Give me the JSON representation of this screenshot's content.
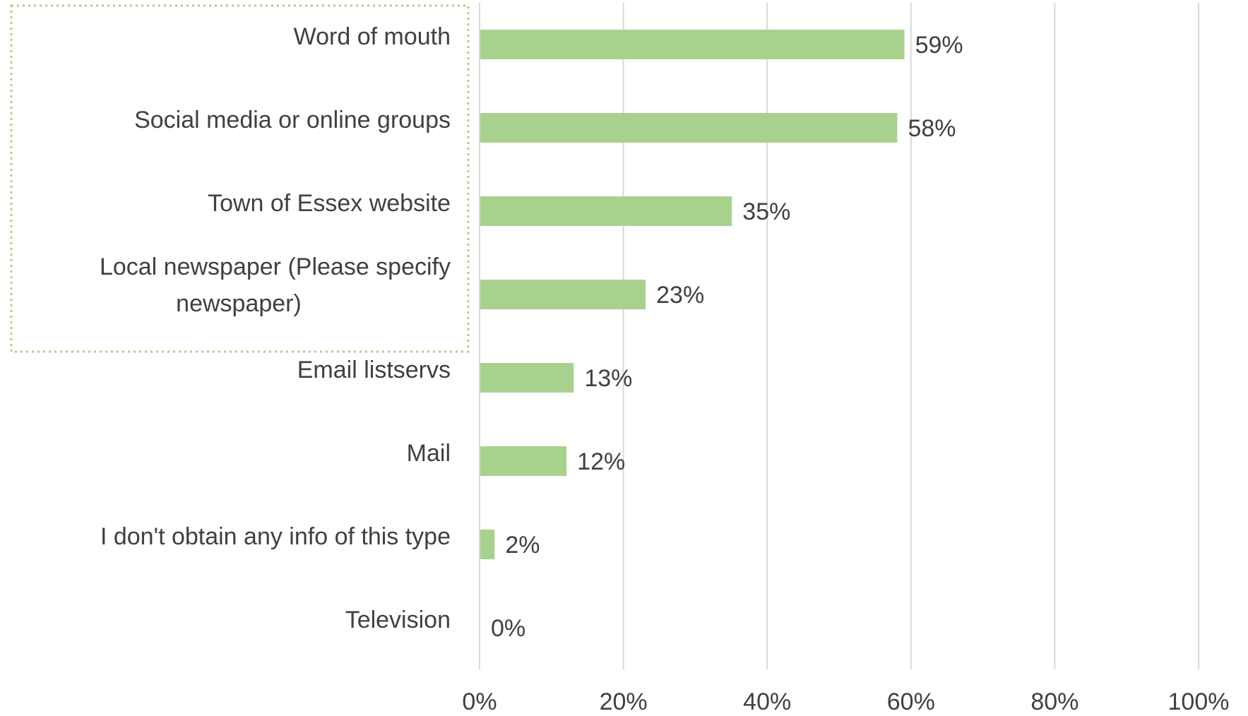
{
  "chart_data": {
    "type": "bar",
    "orientation": "horizontal",
    "categories": [
      "Word of mouth",
      "Social media or online groups",
      "Town of Essex website",
      "Local newspaper (Please specify newspaper)",
      "Email listservs",
      "Mail",
      "I don't obtain any info of this type",
      "Television"
    ],
    "category_lines": [
      [
        "Word of mouth"
      ],
      [
        "Social media or online groups"
      ],
      [
        "Town of Essex website"
      ],
      [
        "Local newspaper (Please specify",
        "newspaper)"
      ],
      [
        "Email listservs"
      ],
      [
        "Mail"
      ],
      [
        "I don't obtain any info of this type"
      ],
      [
        "Television"
      ]
    ],
    "values": [
      59,
      58,
      35,
      23,
      13,
      12,
      2,
      0
    ],
    "value_labels": [
      "59%",
      "58%",
      "35%",
      "23%",
      "13%",
      "12%",
      "2%",
      "0%"
    ],
    "xlim": [
      0,
      100
    ],
    "x_ticks": [
      0,
      20,
      40,
      60,
      80,
      100
    ],
    "x_tick_labels": [
      "0%",
      "20%",
      "40%",
      "60%",
      "80%",
      "100%"
    ],
    "grid": "vertical",
    "legend": "none",
    "bar_color": "#a9d18e",
    "highlight_color": "#a9d18e",
    "highlighted_categories": [
      0,
      1,
      2,
      3
    ]
  }
}
